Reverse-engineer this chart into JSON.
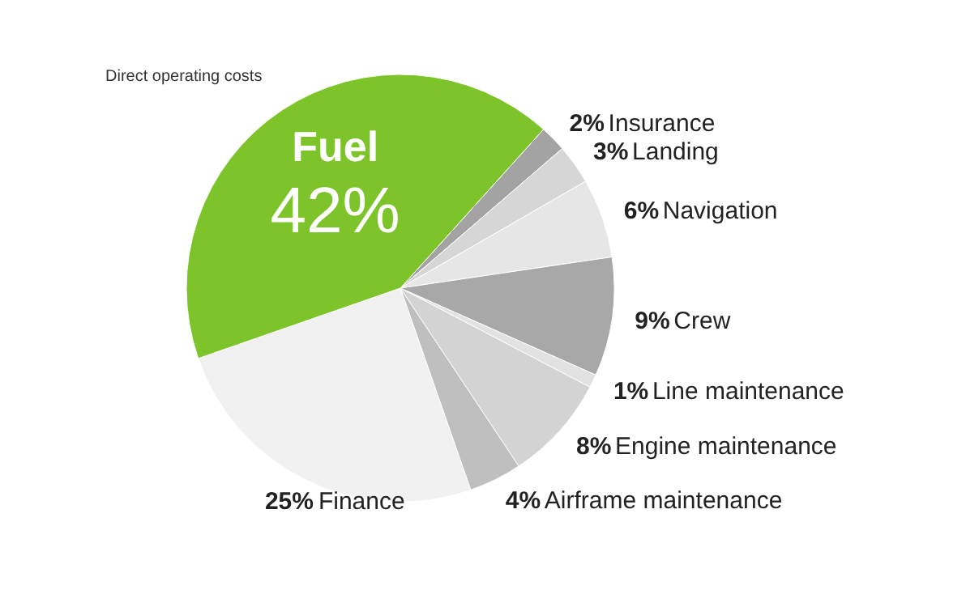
{
  "chart_data": {
    "type": "pie",
    "title": "Direct operating costs",
    "categories": [
      "Insurance",
      "Landing",
      "Navigation",
      "Crew",
      "Line maintenance",
      "Engine maintenance",
      "Airframe maintenance",
      "Finance",
      "Fuel"
    ],
    "values": [
      2,
      3,
      6,
      9,
      1,
      8,
      4,
      25,
      42
    ],
    "colors": [
      "#a3a3a3",
      "#d6d6d6",
      "#e6e6e6",
      "#a8a8a8",
      "#e2e2e2",
      "#d3d3d3",
      "#bfbfbf",
      "#f1f1f1",
      "#7dc42a"
    ],
    "value_labels": [
      "2%",
      "3%",
      "6%",
      "9%",
      "1%",
      "8%",
      "4%",
      "25%",
      "42%"
    ]
  }
}
